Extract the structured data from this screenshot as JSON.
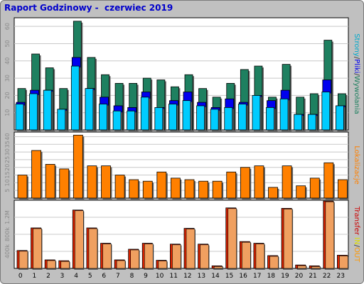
{
  "title": "Raport Godzinowy -  czerwiec 2019",
  "colors": {
    "background": "#c0c0c0",
    "panel": "#ffffff",
    "hits": "#1e8060",
    "files": "#0000ee",
    "pages": "#00ccff",
    "sites": "#ff8000",
    "kbytes": "#dd2200",
    "kbytes_out": "#f0a060",
    "label_strony": "#00aacc",
    "label_pliki": "#0000ee",
    "label_wywolania": "#1e8060",
    "label_lokalizacje": "#ff8000",
    "label_transfer": "#cc0000",
    "label_in": "#dddd00",
    "label_out": "#ff9900"
  },
  "chart_data": [
    {
      "type": "bar",
      "title": "Raport Godzinowy -  czerwiec 2019",
      "categories": [
        "0",
        "1",
        "2",
        "3",
        "4",
        "5",
        "6",
        "7",
        "8",
        "9",
        "10",
        "11",
        "12",
        "13",
        "14",
        "15",
        "16",
        "17",
        "18",
        "19",
        "20",
        "21",
        "22",
        "23"
      ],
      "yticks": [
        10,
        20,
        30,
        40,
        50,
        60
      ],
      "ylim": [
        0,
        65
      ],
      "right_label_parts": [
        "Strony",
        "/",
        "Pliki",
        "/",
        "Wywołania"
      ],
      "series": [
        {
          "name": "Wywołania",
          "values": [
            24,
            44,
            36,
            24,
            63,
            42,
            32,
            27,
            27,
            30,
            29,
            25,
            32,
            24,
            19,
            27,
            35,
            37,
            19,
            38,
            19,
            21,
            52,
            21
          ]
        },
        {
          "name": "Pliki",
          "values": [
            16,
            23,
            23,
            12,
            42,
            24,
            19,
            14,
            13,
            22,
            13,
            17,
            22,
            16,
            13,
            18,
            16,
            20,
            17,
            23,
            9,
            9,
            29,
            14
          ]
        },
        {
          "name": "Strony",
          "values": [
            15,
            21,
            23,
            12,
            37,
            24,
            15,
            11,
            11,
            19,
            13,
            15,
            17,
            14,
            12,
            13,
            15,
            20,
            13,
            18,
            9,
            9,
            22,
            14
          ]
        }
      ]
    },
    {
      "type": "bar",
      "categories": [
        "0",
        "1",
        "2",
        "3",
        "4",
        "5",
        "6",
        "7",
        "8",
        "9",
        "10",
        "11",
        "12",
        "13",
        "14",
        "15",
        "16",
        "17",
        "18",
        "19",
        "20",
        "21",
        "22",
        "23"
      ],
      "yticks": [
        5,
        10,
        15,
        20,
        25,
        30,
        35,
        40
      ],
      "ylim": [
        0,
        43
      ],
      "right_label_parts": [
        "Lokalizacje"
      ],
      "series": [
        {
          "name": "Lokalizacje",
          "values": [
            15,
            31,
            22,
            19,
            41,
            21,
            21,
            15,
            12,
            11,
            17,
            13,
            12,
            11,
            11,
            17,
            20,
            21,
            7,
            21,
            8,
            13,
            23,
            12
          ]
        }
      ]
    },
    {
      "type": "bar",
      "categories": [
        "0",
        "1",
        "2",
        "3",
        "4",
        "5",
        "6",
        "7",
        "8",
        "9",
        "10",
        "11",
        "12",
        "13",
        "14",
        "15",
        "16",
        "17",
        "18",
        "19",
        "20",
        "21",
        "22",
        "23"
      ],
      "yticks": [
        400,
        800,
        1200
      ],
      "ytick_labels": [
        "400k",
        "800k",
        "1.2M"
      ],
      "ylim": [
        0,
        1600
      ],
      "right_label_parts": [
        "Transfer",
        " ",
        "IN",
        "/",
        "OUT"
      ],
      "series": [
        {
          "name": "Transfer",
          "values": [
            420,
            950,
            200,
            180,
            1370,
            950,
            590,
            200,
            450,
            590,
            190,
            570,
            940,
            570,
            60,
            1420,
            630,
            590,
            300,
            1410,
            80,
            60,
            1580,
            310
          ]
        }
      ]
    }
  ]
}
